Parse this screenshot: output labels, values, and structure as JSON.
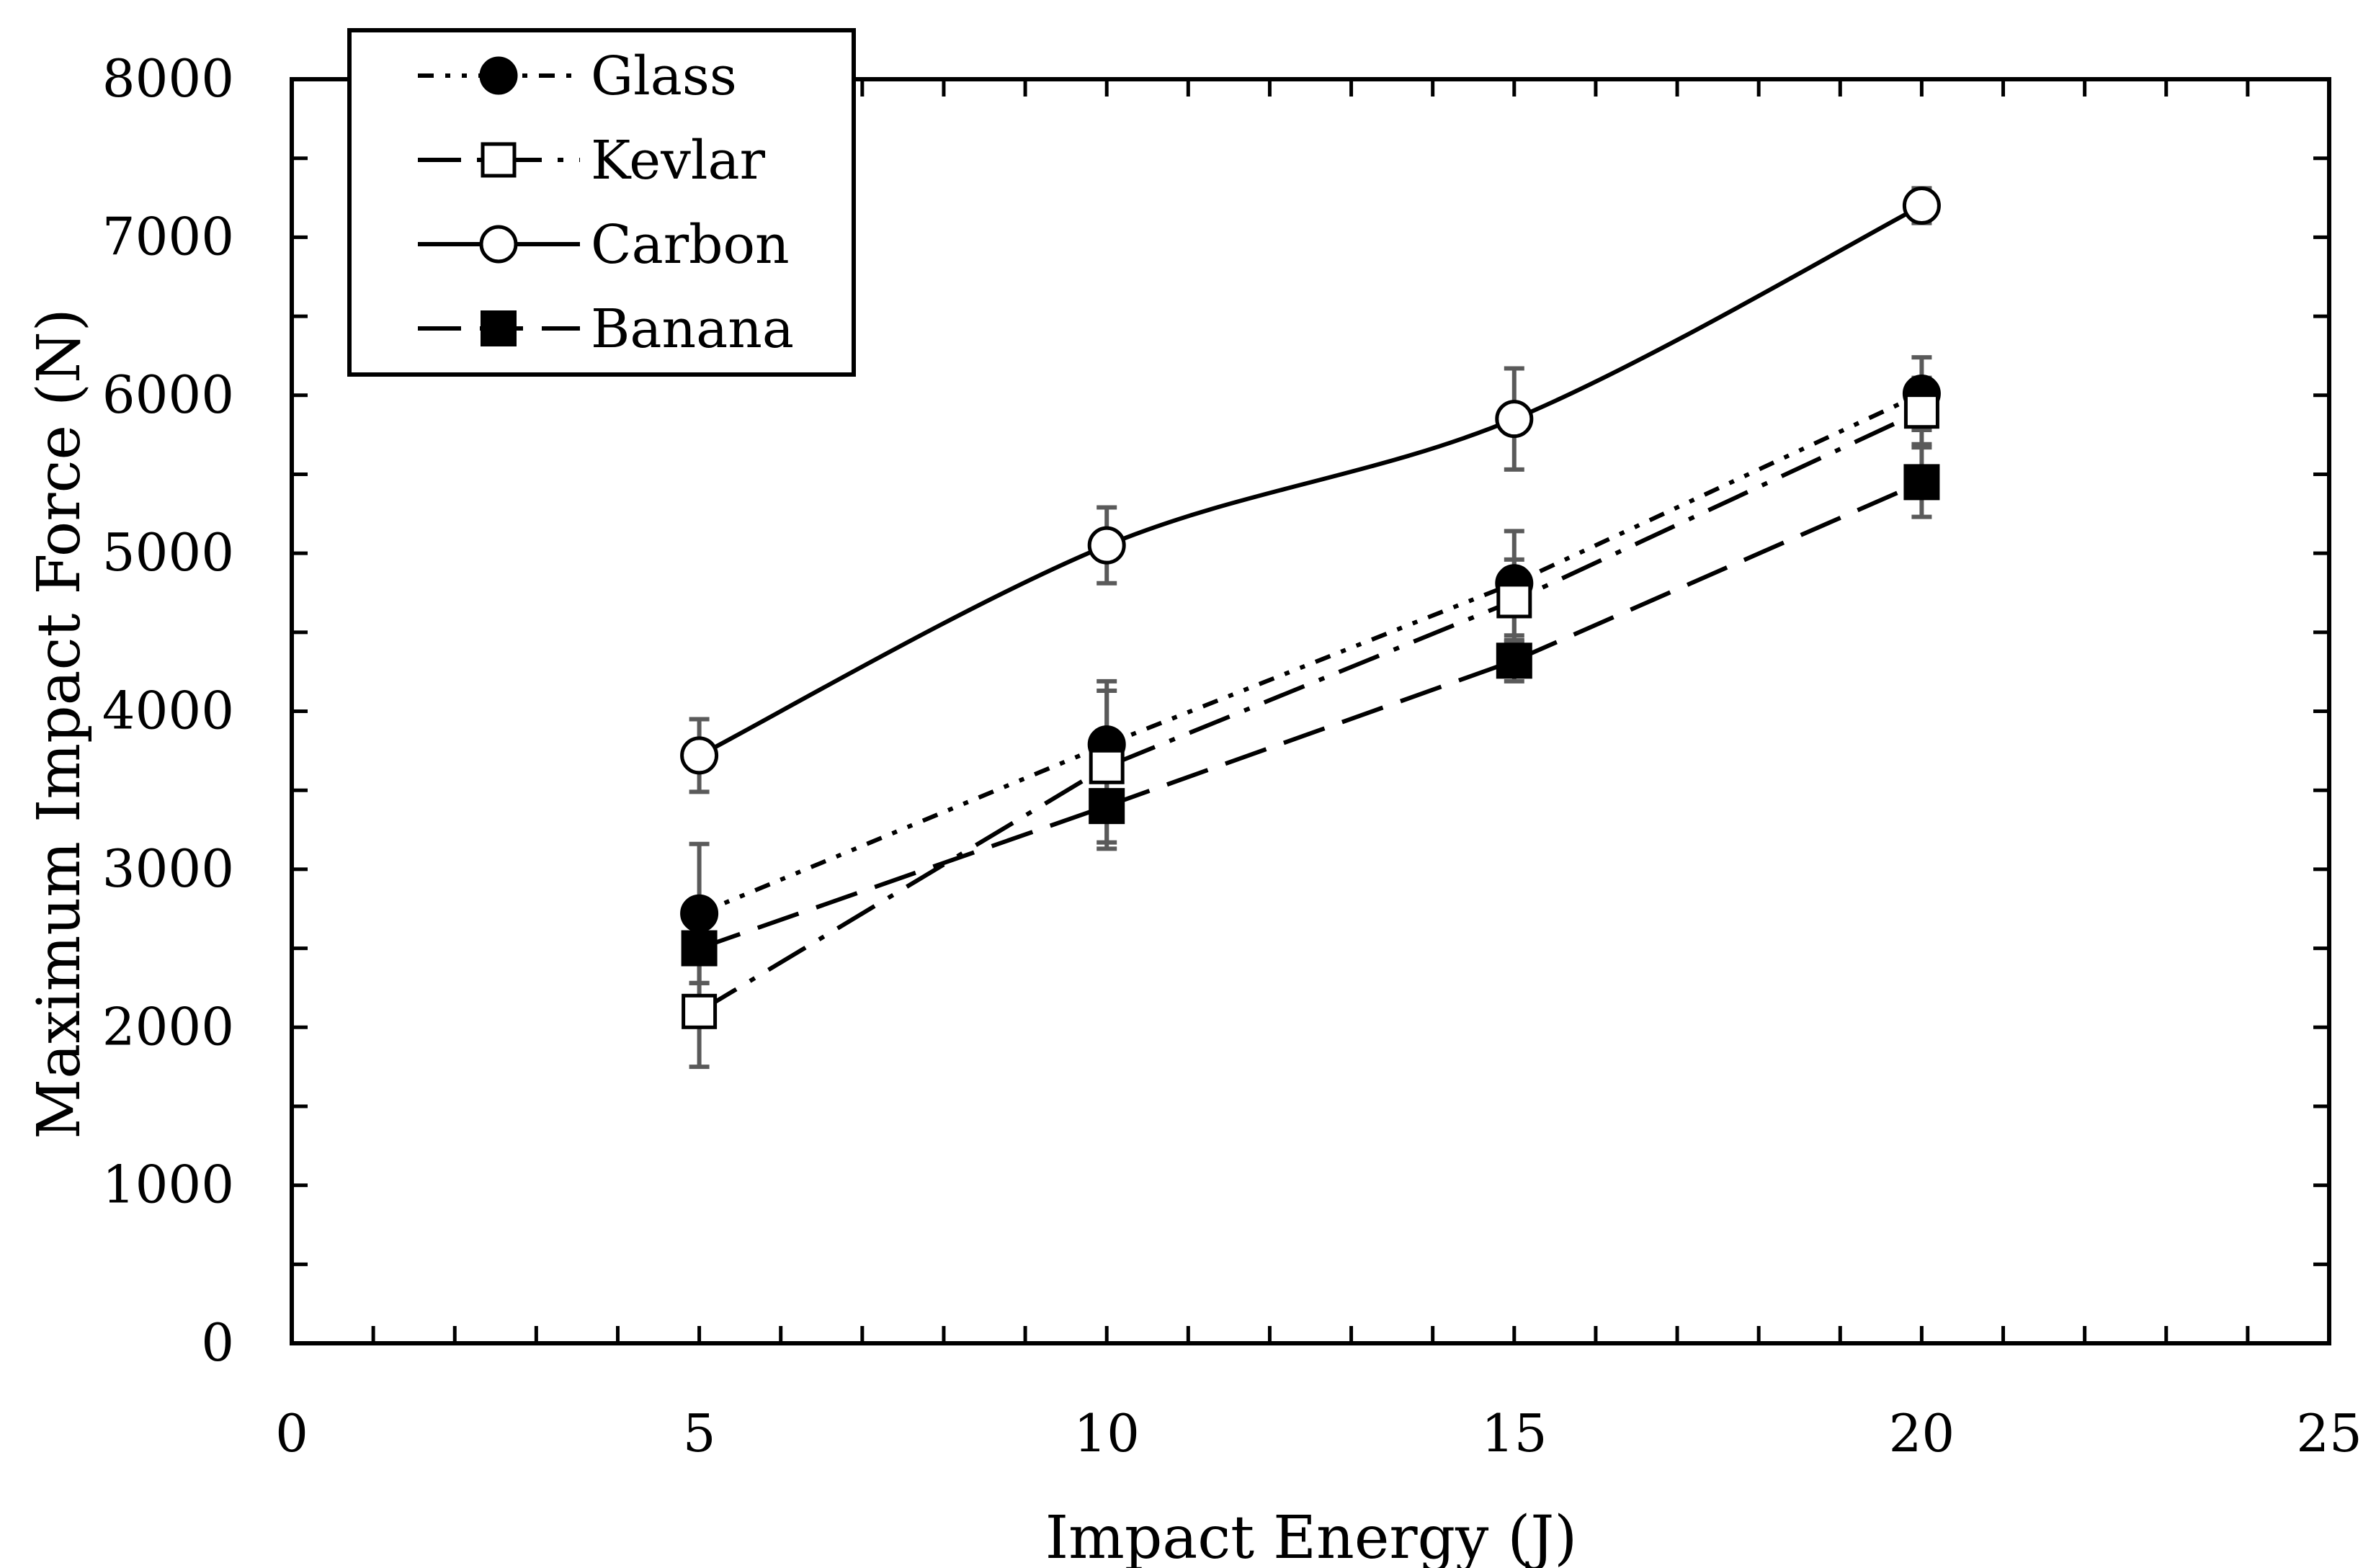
{
  "chart_data": {
    "type": "line",
    "title": "",
    "xlabel": "Impact Energy (J)",
    "ylabel": "Maximum Impact Force (N)",
    "xlim": [
      0,
      25
    ],
    "ylim": [
      0,
      8000
    ],
    "x_ticks": [
      0,
      5,
      10,
      15,
      20,
      25
    ],
    "y_ticks": [
      0,
      1000,
      2000,
      3000,
      4000,
      5000,
      6000,
      7000,
      8000
    ],
    "x_tick_labels": [
      "0",
      "5",
      "10",
      "15",
      "20",
      "25"
    ],
    "y_tick_labels": [
      "0",
      "1000",
      "2000",
      "3000",
      "4000",
      "5000",
      "6000",
      "7000",
      "8000"
    ],
    "grid": false,
    "legend_position": "top-left",
    "x": [
      5,
      10,
      15,
      20
    ],
    "series": [
      {
        "name": "Glass",
        "values": [
          2720,
          3790,
          4810,
          6010
        ],
        "errors": [
          440,
          400,
          330,
          230
        ],
        "marker": "filled-circle",
        "line_style": "dash-dot-dot",
        "smooth": false
      },
      {
        "name": "Kevlar",
        "values": [
          2100,
          3650,
          4700,
          5900
        ],
        "errors": [
          350,
          480,
          260,
          210
        ],
        "marker": "open-square",
        "line_style": "long-dash-dot",
        "smooth": false
      },
      {
        "name": "Carbon",
        "values": [
          3720,
          5050,
          5850,
          7200
        ],
        "errors": [
          230,
          240,
          320,
          110
        ],
        "marker": "open-circle",
        "line_style": "solid",
        "smooth": true
      },
      {
        "name": "Banana",
        "values": [
          2500,
          3400,
          4320,
          5450
        ],
        "errors": [
          220,
          270,
          130,
          220
        ],
        "marker": "filled-square",
        "line_style": "long-dash",
        "smooth": false
      }
    ]
  },
  "colors": {
    "axis": "#000000",
    "line": "#000000",
    "errorbar": "#5a5a5a",
    "background": "#ffffff"
  }
}
